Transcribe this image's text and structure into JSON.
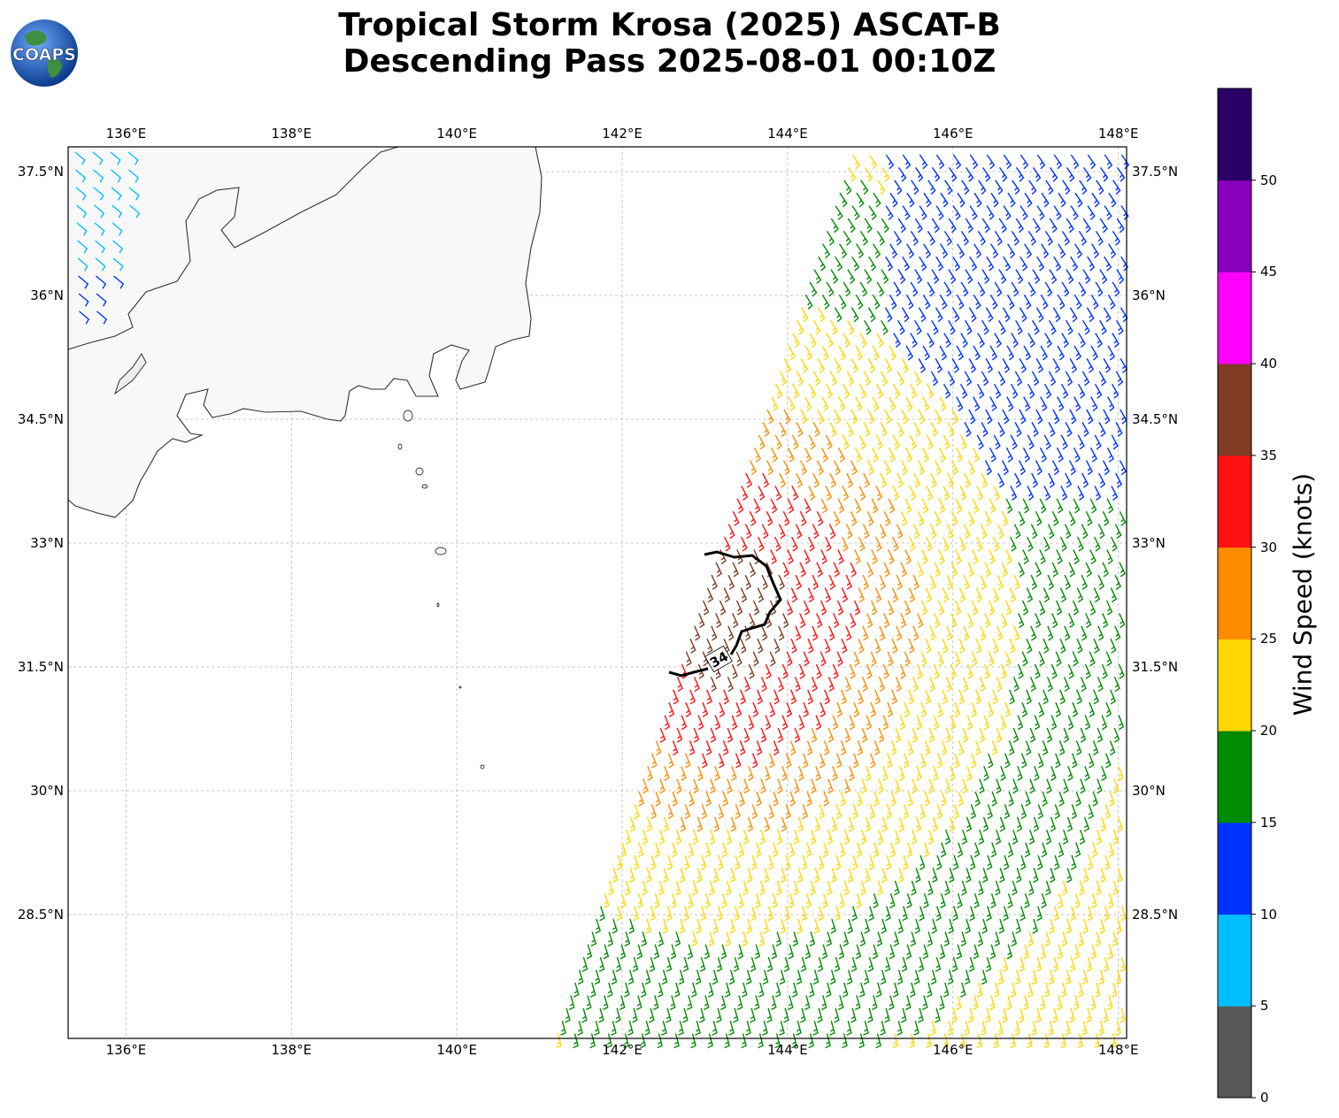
{
  "title": {
    "line1": "Tropical Storm Krosa (2025) ASCAT-B",
    "line2": "Descending Pass 2025-08-01 00:10Z"
  },
  "logo": {
    "text": "COAPS",
    "icon": "globe-icon"
  },
  "map": {
    "lon_ticks": [
      "136°E",
      "138°E",
      "140°E",
      "142°E",
      "144°E",
      "146°E",
      "148°E"
    ],
    "lat_ticks": [
      "37.5°N",
      "36°N",
      "34.5°N",
      "33°N",
      "31.5°N",
      "30°N",
      "28.5°N"
    ],
    "lon_range": [
      135.3,
      148.1
    ],
    "lat_range": [
      27.0,
      37.8
    ],
    "grid": true,
    "contour_label": "34",
    "contour_color": "#000000"
  },
  "colorbar": {
    "label": "Wind Speed (knots)",
    "ticks": [
      "0",
      "5",
      "10",
      "15",
      "20",
      "25",
      "30",
      "35",
      "40",
      "45",
      "50"
    ],
    "bins": [
      {
        "range": "0-5",
        "color": "#595959"
      },
      {
        "range": "5-10",
        "color": "#00bfff"
      },
      {
        "range": "10-15",
        "color": "#0033ff"
      },
      {
        "range": "15-20",
        "color": "#008c00"
      },
      {
        "range": "20-25",
        "color": "#ffd700"
      },
      {
        "range": "25-30",
        "color": "#ff8c00"
      },
      {
        "range": "30-35",
        "color": "#ff1111"
      },
      {
        "range": "35-40",
        "color": "#7f3b24"
      },
      {
        "range": "40-45",
        "color": "#ff00ff"
      },
      {
        "range": "45-50",
        "color": "#8800bb"
      },
      {
        "range": "50-55",
        "color": "#2a0066"
      }
    ]
  }
}
